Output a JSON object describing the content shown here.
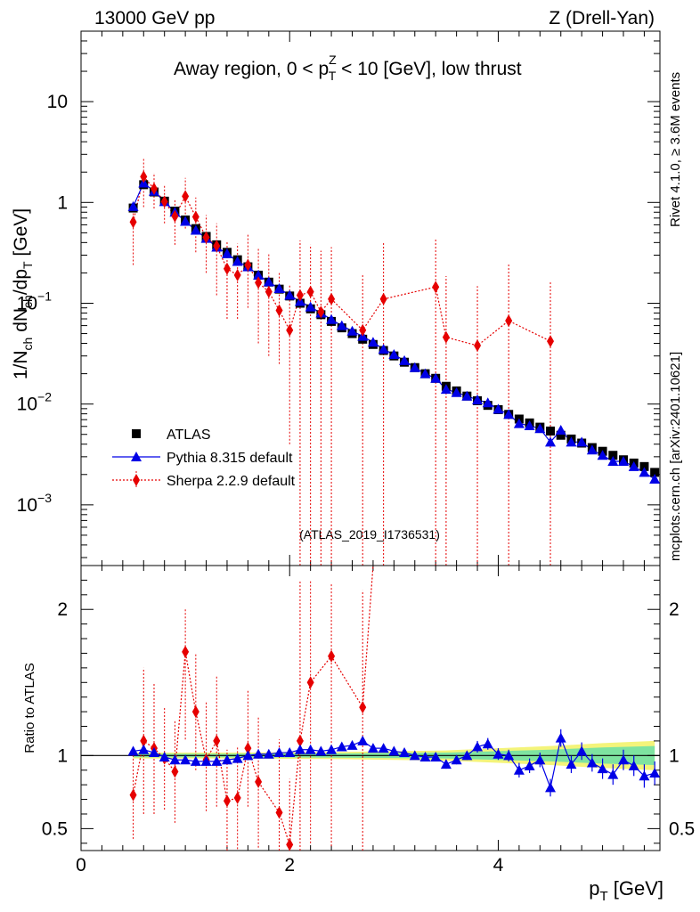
{
  "header": {
    "left": "13000 GeV pp",
    "right": "Z (Drell-Yan)",
    "panel_title_parts": [
      "Away region, 0 < p",
      "Z",
      "T",
      " < 10 [GeV], low thrust"
    ],
    "watermark": "(ATLAS_2019_I1736531)",
    "side_top": "Rivet 4.1.0, ≥ 3.6M events",
    "side_bottom": "mcplots.cern.ch [arXiv:2401.10621]"
  },
  "colors": {
    "data": "#000000",
    "pythia": "#0000e6",
    "sherpa": "#e60000",
    "band_inner": "#7ee3a0",
    "band_outer": "#f4f47a"
  },
  "chart_data": [
    {
      "type": "scatter",
      "panel": "main",
      "title": "Away region, 0 < p_T^Z < 10 [GeV], low thrust",
      "xlabel": "p_T [GeV]",
      "ylabel_parts": [
        "1/N",
        "ch",
        " dN",
        "ch",
        "/dp",
        "T",
        " [GeV]"
      ],
      "yscale": "log",
      "xlim": [
        0,
        5.55
      ],
      "ylim": [
        0.00025,
        50
      ],
      "yticks": [
        {
          "v": 0.001,
          "base": "10",
          "exp": "−3"
        },
        {
          "v": 0.01,
          "base": "10",
          "exp": "−2"
        },
        {
          "v": 0.1,
          "base": "10",
          "exp": "−1"
        },
        {
          "v": 1,
          "base": "1",
          "exp": ""
        },
        {
          "v": 10,
          "base": "10",
          "exp": ""
        }
      ],
      "legend": [
        "ATLAS",
        "Pythia 8.315 default",
        "Sherpa 2.2.9 default"
      ],
      "legend_position": "bottom-left",
      "series": [
        {
          "name": "ATLAS",
          "style": "marker",
          "x": [
            0.5,
            0.6,
            0.7,
            0.8,
            0.9,
            1.0,
            1.1,
            1.2,
            1.3,
            1.4,
            1.5,
            1.6,
            1.7,
            1.8,
            1.9,
            2.0,
            2.1,
            2.2,
            2.3,
            2.4,
            2.5,
            2.6,
            2.7,
            2.8,
            2.9,
            3.0,
            3.1,
            3.2,
            3.3,
            3.4,
            3.5,
            3.6,
            3.7,
            3.8,
            3.9,
            4.0,
            4.1,
            4.2,
            4.3,
            4.4,
            4.5,
            4.6,
            4.7,
            4.8,
            4.9,
            5.0,
            5.1,
            5.2,
            5.3,
            5.4,
            5.5
          ],
          "y": [
            0.88,
            1.5,
            1.27,
            1.03,
            0.82,
            0.67,
            0.55,
            0.46,
            0.38,
            0.32,
            0.27,
            0.23,
            0.19,
            0.162,
            0.138,
            0.118,
            0.1,
            0.088,
            0.077,
            0.066,
            0.057,
            0.05,
            0.044,
            0.039,
            0.034,
            0.03,
            0.026,
            0.023,
            0.02,
            0.018,
            0.015,
            0.0135,
            0.012,
            0.0108,
            0.0097,
            0.0088,
            0.0079,
            0.0071,
            0.0065,
            0.0059,
            0.0054,
            0.0049,
            0.0045,
            0.0041,
            0.0037,
            0.0034,
            0.0031,
            0.0028,
            0.0026,
            0.0024,
            0.0021
          ]
        },
        {
          "name": "Pythia 8.315 default",
          "style": "line-marker",
          "x": [
            0.5,
            0.6,
            0.7,
            0.8,
            0.9,
            1.0,
            1.1,
            1.2,
            1.3,
            1.4,
            1.5,
            1.6,
            1.7,
            1.8,
            1.9,
            2.0,
            2.1,
            2.2,
            2.3,
            2.4,
            2.5,
            2.6,
            2.7,
            2.8,
            2.9,
            3.0,
            3.1,
            3.2,
            3.3,
            3.4,
            3.5,
            3.6,
            3.7,
            3.8,
            3.9,
            4.0,
            4.1,
            4.2,
            4.3,
            4.4,
            4.5,
            4.6,
            4.7,
            4.8,
            4.9,
            5.0,
            5.1,
            5.2,
            5.3,
            5.4,
            5.5
          ],
          "y": [
            0.91,
            1.56,
            1.29,
            1.02,
            0.8,
            0.65,
            0.53,
            0.44,
            0.36,
            0.31,
            0.26,
            0.23,
            0.19,
            0.163,
            0.14,
            0.12,
            0.104,
            0.092,
            0.08,
            0.069,
            0.06,
            0.053,
            0.047,
            0.041,
            0.035,
            0.031,
            0.027,
            0.023,
            0.02,
            0.018,
            0.014,
            0.013,
            0.012,
            0.011,
            0.0103,
            0.0089,
            0.0079,
            0.0064,
            0.0061,
            0.0057,
            0.0042,
            0.0055,
            0.0042,
            0.0042,
            0.0035,
            0.0031,
            0.0027,
            0.0027,
            0.0024,
            0.0021,
            0.0018
          ]
        },
        {
          "name": "Sherpa 2.2.9 default",
          "style": "dotted-marker",
          "x": [
            0.5,
            0.6,
            0.7,
            0.8,
            0.9,
            1.0,
            1.1,
            1.2,
            1.3,
            1.4,
            1.5,
            1.6,
            1.7,
            1.8,
            1.9,
            2.0,
            2.1,
            2.2,
            2.3,
            2.4,
            2.5,
            2.6,
            2.7,
            2.8,
            2.9,
            3.0,
            3.1,
            3.2,
            3.3,
            3.4,
            3.5,
            3.6,
            3.7,
            3.8,
            3.9,
            4.0,
            4.1,
            4.2,
            4.3,
            4.4,
            4.5
          ],
          "y": [
            0.64,
            1.8,
            1.37,
            1.02,
            0.73,
            1.15,
            0.72,
            0.45,
            0.37,
            0.22,
            0.19,
            0.24,
            0.16,
            0.13,
            0.085,
            0.054,
            0.12,
            0.13,
            0.082,
            0.11,
            null,
            null,
            0.054,
            null,
            0.11,
            null,
            null,
            null,
            null,
            0.145,
            0.046,
            null,
            null,
            0.038,
            null,
            null,
            0.067,
            null,
            null,
            null,
            0.042
          ],
          "err_lo": [
            0.4,
            0.9,
            0.5,
            0.4,
            0.35,
            0.6,
            0.4,
            0.25,
            0.25,
            0.15,
            0.12,
            0.15,
            0.12,
            0.1,
            0.06,
            0.05,
            0.12,
            0.13,
            0.082,
            0.11,
            null,
            null,
            0.054,
            null,
            0.11,
            null,
            null,
            null,
            null,
            0.145,
            0.046,
            null,
            null,
            0.038,
            null,
            null,
            0.067,
            null,
            null,
            null,
            0.042
          ],
          "err_hi": [
            0.4,
            0.9,
            0.6,
            0.45,
            0.35,
            0.6,
            0.4,
            0.3,
            0.25,
            0.2,
            0.2,
            0.25,
            0.2,
            0.18,
            0.12,
            0.1,
            0.3,
            0.25,
            0.25,
            0.25,
            null,
            null,
            0.14,
            null,
            0.3,
            null,
            null,
            null,
            null,
            0.3,
            0.14,
            null,
            null,
            0.11,
            null,
            null,
            0.18,
            null,
            null,
            null,
            0.12
          ]
        }
      ]
    },
    {
      "type": "scatter",
      "panel": "ratio",
      "xlabel": "p_T [GeV]",
      "ylabel": "Ratio to ATLAS",
      "xlim": [
        0,
        5.55
      ],
      "ylim": [
        0.35,
        2.3
      ],
      "xticks": [
        0,
        2,
        4
      ],
      "yticks": [
        0.5,
        1,
        2
      ],
      "yticklabels": [
        "0.5",
        "1",
        "2"
      ],
      "reference": 1.0,
      "band": {
        "x": [
          0.5,
          1.5,
          2.5,
          3.5,
          4.0,
          4.5,
          5.0,
          5.5
        ],
        "inner": [
          0.012,
          0.012,
          0.015,
          0.02,
          0.03,
          0.04,
          0.055,
          0.065
        ],
        "outer": [
          0.02,
          0.02,
          0.025,
          0.035,
          0.05,
          0.065,
          0.085,
          0.1
        ]
      },
      "series": [
        {
          "name": "Pythia 8.315 default",
          "style": "line-marker",
          "x": [
            0.5,
            0.6,
            0.7,
            0.8,
            0.9,
            1.0,
            1.1,
            1.2,
            1.3,
            1.4,
            1.5,
            1.6,
            1.7,
            1.8,
            1.9,
            2.0,
            2.1,
            2.2,
            2.3,
            2.4,
            2.5,
            2.6,
            2.7,
            2.8,
            2.9,
            3.0,
            3.1,
            3.2,
            3.3,
            3.4,
            3.5,
            3.6,
            3.7,
            3.8,
            3.9,
            4.0,
            4.1,
            4.2,
            4.3,
            4.4,
            4.5,
            4.6,
            4.7,
            4.8,
            4.9,
            5.0,
            5.1,
            5.2,
            5.3,
            5.4,
            5.5
          ],
          "y": [
            1.03,
            1.04,
            1.02,
            0.99,
            0.97,
            0.97,
            0.96,
            0.96,
            0.96,
            0.97,
            0.98,
            1.0,
            1.01,
            1.01,
            1.02,
            1.02,
            1.04,
            1.04,
            1.03,
            1.04,
            1.06,
            1.07,
            1.1,
            1.05,
            1.05,
            1.03,
            1.02,
            1.0,
            0.99,
            0.99,
            0.94,
            0.97,
            1.0,
            1.06,
            1.08,
            1.01,
            1.0,
            0.9,
            0.93,
            0.97,
            0.78,
            1.12,
            0.94,
            1.03,
            0.95,
            0.91,
            0.87,
            0.97,
            0.93,
            0.86,
            0.88
          ],
          "err": [
            0,
            0,
            0,
            0,
            0,
            0,
            0,
            0,
            0,
            0,
            0,
            0,
            0,
            0,
            0,
            0,
            0,
            0,
            0,
            0,
            0,
            0,
            0,
            0,
            0,
            0.01,
            0.02,
            0.02,
            0.02,
            0.02,
            0.03,
            0.03,
            0.03,
            0.04,
            0.04,
            0.04,
            0.04,
            0.05,
            0.05,
            0.05,
            0.06,
            0.06,
            0.06,
            0.06,
            0.06,
            0.07,
            0.07,
            0.07,
            0.07,
            0.08,
            0.08
          ]
        },
        {
          "name": "Sherpa 2.2.9 default",
          "style": "dotted-marker",
          "x": [
            0.5,
            0.6,
            0.7,
            0.8,
            0.9,
            1.0,
            1.1,
            1.2,
            1.3,
            1.4,
            1.5,
            1.6,
            1.7,
            1.8,
            1.9,
            2.0,
            2.1,
            2.2,
            2.3,
            2.4,
            2.5,
            2.6,
            2.7,
            2.8
          ],
          "y": [
            0.73,
            1.1,
            1.05,
            0.98,
            0.89,
            1.71,
            1.3,
            0.97,
            1.1,
            0.69,
            0.71,
            1.05,
            0.82,
            null,
            0.61,
            0.39,
            1.1,
            1.5,
            null,
            1.68,
            null,
            null,
            1.33,
            2.3
          ],
          "err_lo": [
            0.3,
            0.5,
            0.45,
            0.35,
            0.35,
            0.6,
            0.4,
            0.35,
            0.45,
            0.35,
            0.35,
            0.4,
            0.45,
            null,
            0.5,
            0.39,
            0.9,
            1.1,
            null,
            1.3,
            null,
            null,
            1.33,
            0
          ],
          "err_hi": [
            0.3,
            0.5,
            0.45,
            0.35,
            0.35,
            0.3,
            0.4,
            0.4,
            0.45,
            0.35,
            0.35,
            0.4,
            0.45,
            null,
            0.5,
            0.45,
            1.1,
            0.7,
            null,
            0.5,
            null,
            null,
            0.8,
            0
          ]
        }
      ]
    }
  ]
}
